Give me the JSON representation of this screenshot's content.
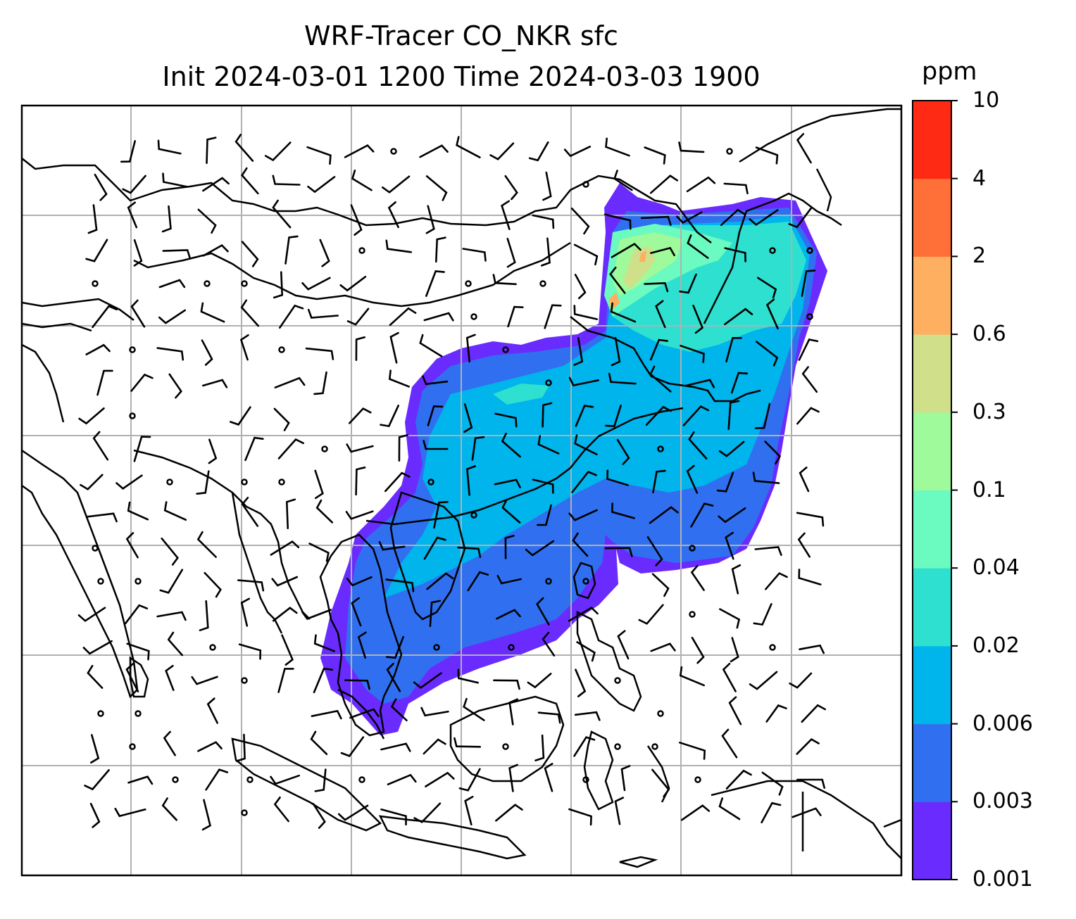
{
  "title": {
    "line1": "WRF-Tracer CO_NKR sfc",
    "line2": "Init 2024-03-01 1200 Time 2024-03-03 1900"
  },
  "colorbar": {
    "units": "ppm",
    "levels": [
      "0.001",
      "0.003",
      "0.006",
      "0.02",
      "0.04",
      "0.1",
      "0.3",
      "0.6",
      "2",
      "4",
      "10"
    ],
    "colors": [
      "#6a2bff",
      "#3070f0",
      "#00b4ec",
      "#2ee0d0",
      "#6bfac0",
      "#9efa9a",
      "#d0e08a",
      "#ffaf60",
      "#ff7038",
      "#ff2a14"
    ]
  },
  "map": {
    "background": "#ffffff",
    "coastline_color": "#000000",
    "grid_color": "#b0b0b0",
    "barb_color": "#000000"
  }
}
